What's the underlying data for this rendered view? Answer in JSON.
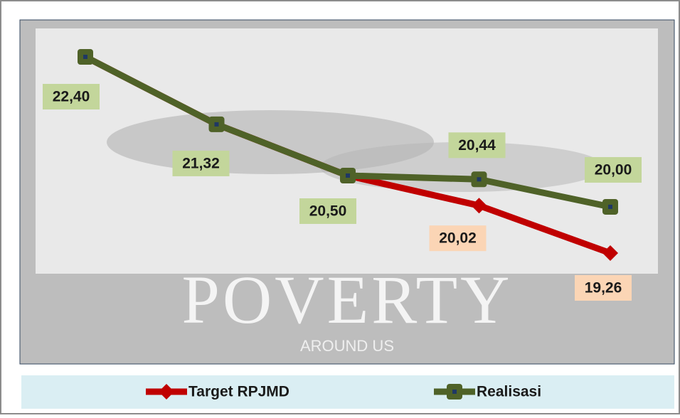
{
  "chart_data": {
    "type": "line",
    "annotations": [
      "POVERTY",
      "AROUND US"
    ],
    "categories": [
      null,
      null,
      null,
      null,
      null
    ],
    "series": [
      {
        "name": "Target RPJMD",
        "color": "#c00000",
        "marker": "diamond",
        "label_color": "#fbd5b5",
        "values": [
          22.4,
          21.32,
          20.5,
          20.02,
          19.26
        ],
        "value_labels": [
          null,
          null,
          null,
          "20,02",
          "19,26"
        ]
      },
      {
        "name": "Realisasi",
        "color": "#4f6228",
        "marker": "square",
        "label_color": "#c3d69b",
        "values": [
          22.4,
          21.32,
          20.5,
          20.44,
          20.0
        ],
        "value_labels": [
          "22,40",
          "21,32",
          "20,50",
          "20,44",
          "20,00"
        ]
      }
    ],
    "legend": "bottom"
  }
}
